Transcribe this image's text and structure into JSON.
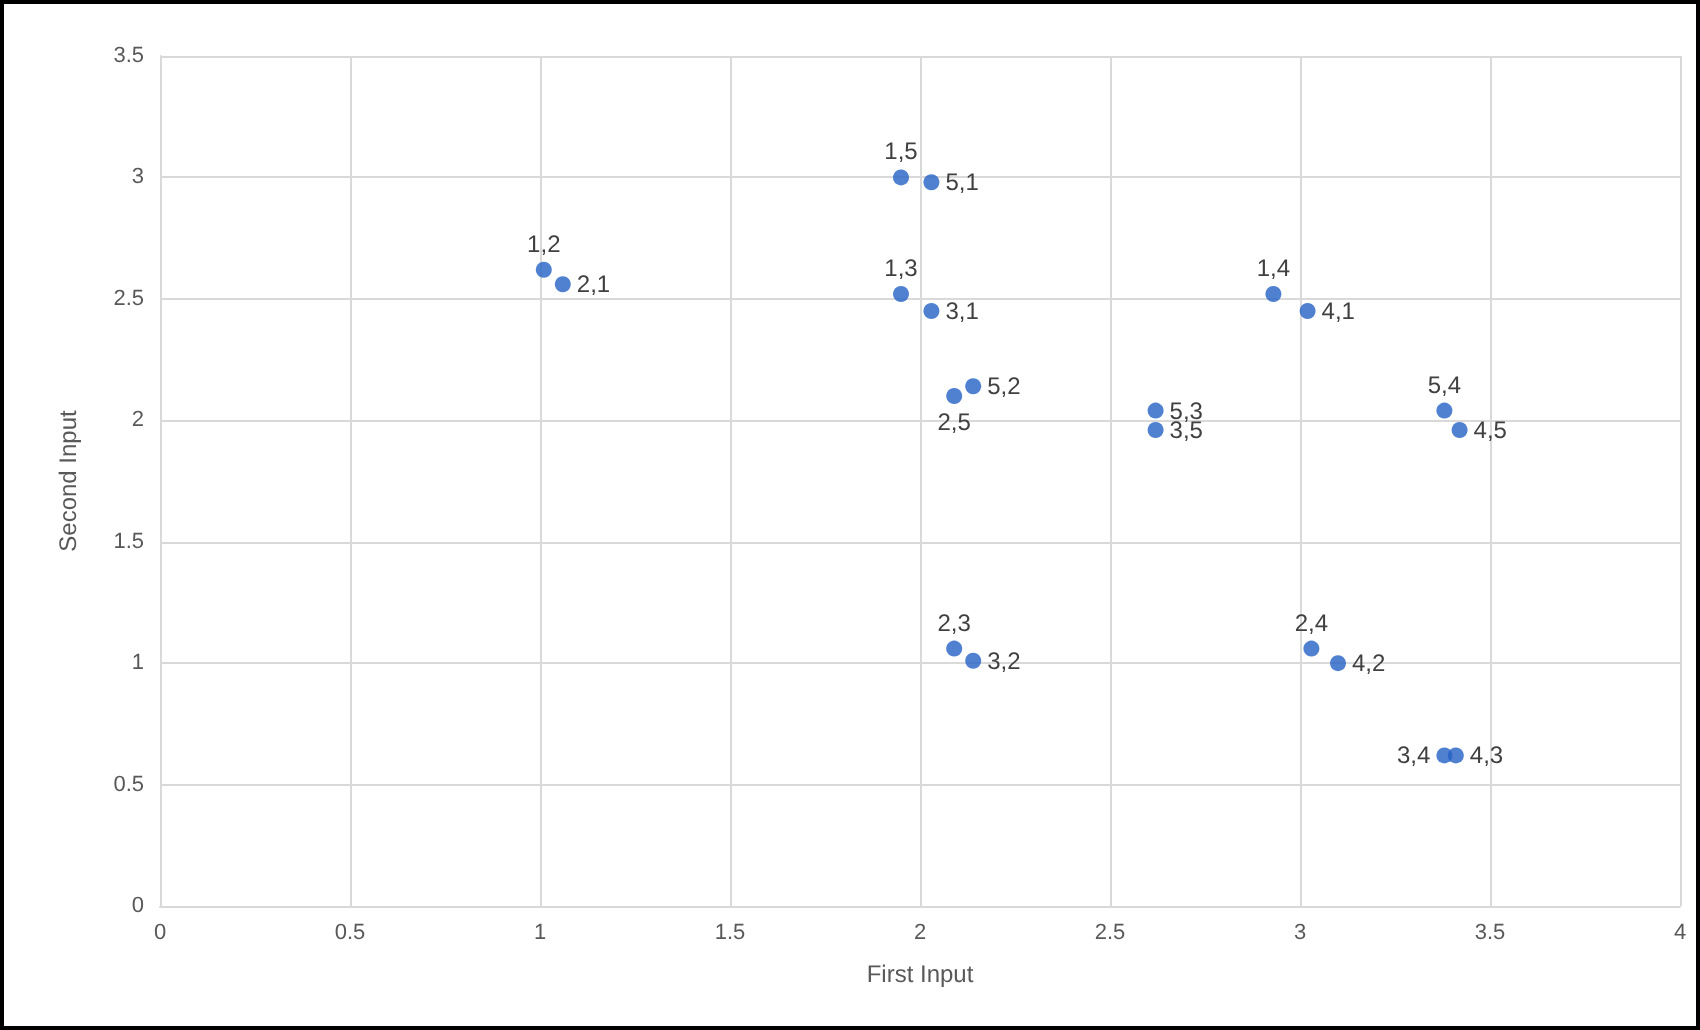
{
  "chart_data": {
    "type": "scatter",
    "xlabel": "First Input",
    "ylabel": "Second Input",
    "xlim": [
      0,
      4
    ],
    "xticks": [
      0,
      0.5,
      1,
      1.5,
      2,
      2.5,
      3,
      3.5,
      4
    ],
    "ylim": [
      0,
      3.5
    ],
    "yticks": [
      0,
      0.5,
      1,
      1.5,
      2,
      2.5,
      3,
      3.5
    ],
    "grid": true,
    "marker": "circle",
    "series": [
      {
        "color": "#2462c4",
        "x": [
          1.01,
          1.06,
          1.95,
          2.03,
          1.95,
          2.03,
          2.14,
          2.09,
          2.62,
          2.62,
          2.93,
          3.02,
          3.38,
          3.42,
          2.09,
          2.14,
          3.03,
          3.1,
          3.38,
          3.41
        ],
        "values": [
          2.62,
          2.56,
          3.0,
          2.98,
          2.52,
          2.45,
          2.14,
          2.1,
          2.04,
          1.96,
          2.52,
          2.45,
          2.04,
          1.96,
          1.06,
          1.01,
          1.06,
          1.0,
          0.62,
          0.62
        ]
      }
    ],
    "annotations": [
      {
        "text": "1,2",
        "x": 1.01,
        "y": 2.62
      },
      {
        "text": "2,1",
        "x": 1.06,
        "y": 2.56
      },
      {
        "text": "1,5",
        "x": 1.95,
        "y": 3.0
      },
      {
        "text": "5,1",
        "x": 2.03,
        "y": 2.98
      },
      {
        "text": "1,3",
        "x": 1.95,
        "y": 2.52
      },
      {
        "text": "3,1",
        "x": 2.03,
        "y": 2.45
      },
      {
        "text": "5,2",
        "x": 2.14,
        "y": 2.14
      },
      {
        "text": "2,5",
        "x": 2.09,
        "y": 2.1
      },
      {
        "text": "5,3",
        "x": 2.62,
        "y": 2.04
      },
      {
        "text": "3,5",
        "x": 2.62,
        "y": 1.96
      },
      {
        "text": "1,4",
        "x": 2.93,
        "y": 2.52
      },
      {
        "text": "4,1",
        "x": 3.02,
        "y": 2.45
      },
      {
        "text": "5,4",
        "x": 3.38,
        "y": 2.04
      },
      {
        "text": "4,5",
        "x": 3.42,
        "y": 1.96
      },
      {
        "text": "2,3",
        "x": 2.09,
        "y": 1.06
      },
      {
        "text": "3,2",
        "x": 2.14,
        "y": 1.01
      },
      {
        "text": "2,4",
        "x": 3.03,
        "y": 1.06
      },
      {
        "text": "4,2",
        "x": 3.1,
        "y": 1.0
      },
      {
        "text": "3,4",
        "x": 3.38,
        "y": 0.62
      },
      {
        "text": "4,3",
        "x": 3.41,
        "y": 0.62
      }
    ]
  }
}
